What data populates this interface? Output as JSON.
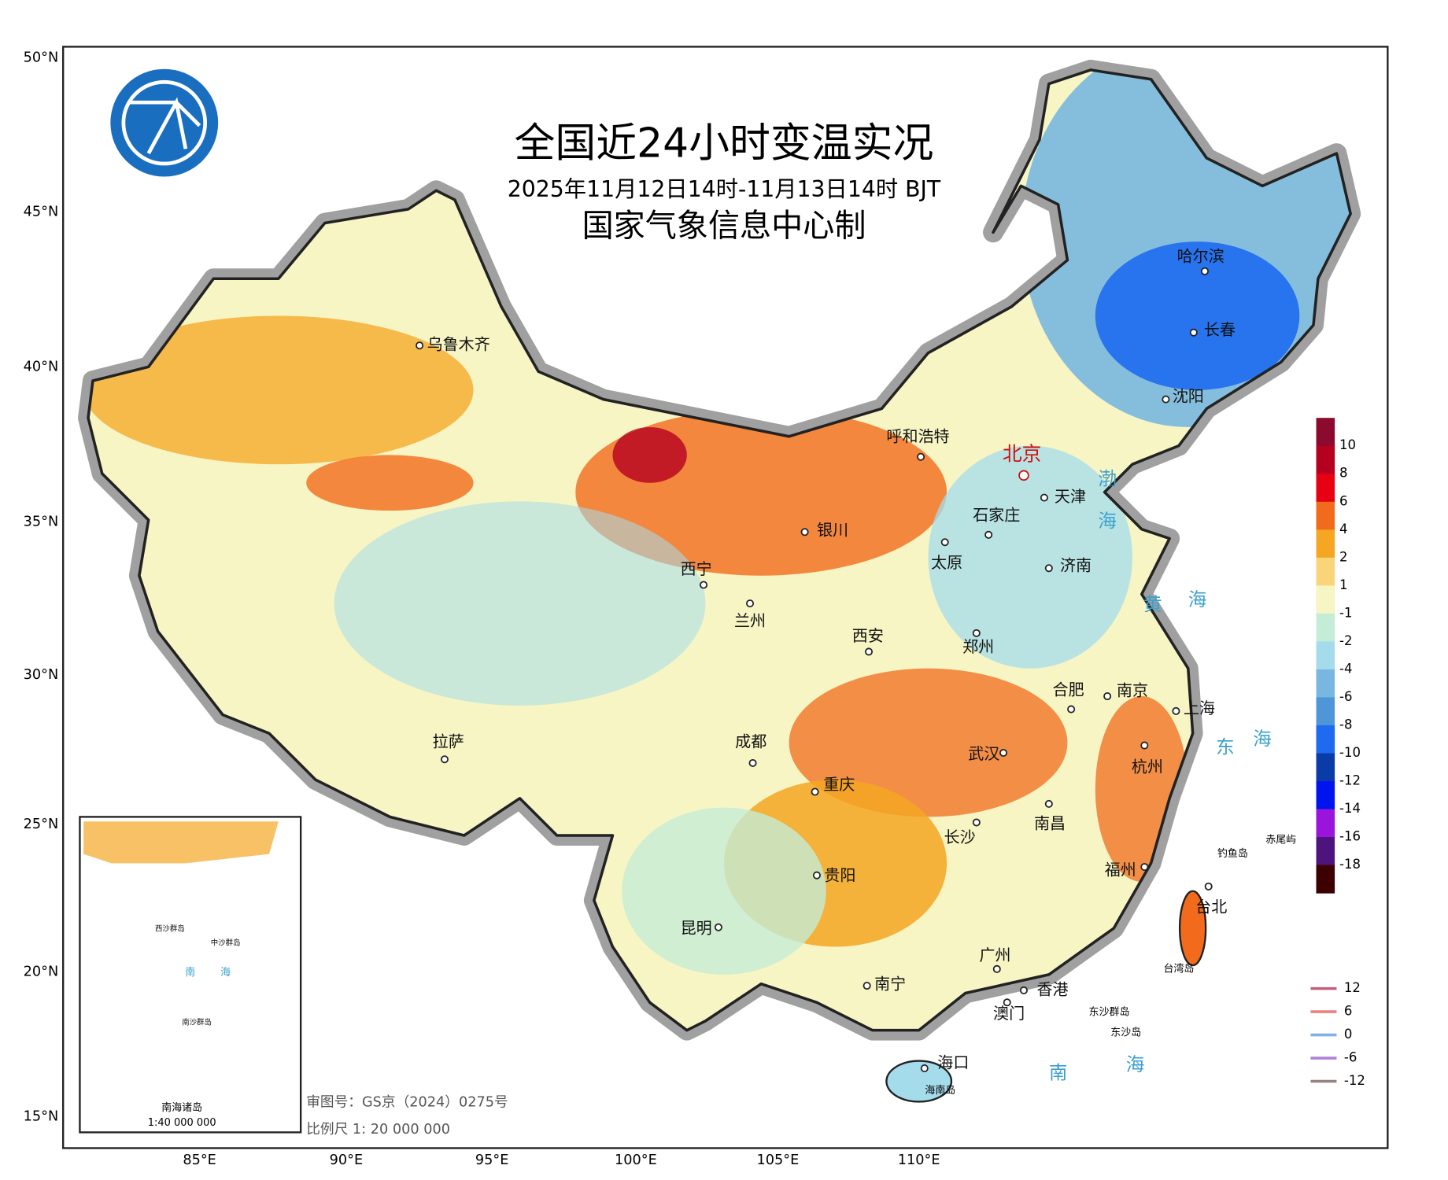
{
  "header": {
    "title": "全国近24小时变温实况",
    "subtitle": "2025年11月12日14时-11月13日14时 BJT",
    "producer": "国家气象信息中心制"
  },
  "lat_labels": [
    "50°N",
    "45°N",
    "40°N",
    "35°N",
    "30°N",
    "25°N",
    "20°N",
    "15°N"
  ],
  "lon_labels": [
    "85°E",
    "90°E",
    "95°E",
    "100°E",
    "105°E",
    "110°E"
  ],
  "legend": {
    "labels": [
      "10",
      "8",
      "6",
      "4",
      "2",
      "1",
      "-1",
      "-2",
      "-4",
      "-6",
      "-8",
      "-10",
      "-12",
      "-14",
      "-16",
      "-18"
    ],
    "colors": [
      "#8b0a2e",
      "#b5001f",
      "#e60012",
      "#f26b1d",
      "#f5a623",
      "#fad478",
      "#f7f5c4",
      "#c4ecd6",
      "#a4dcec",
      "#78b8e0",
      "#4f96d8",
      "#1e6af0",
      "#0a3ca8",
      "#0014f0",
      "#9a14dc",
      "#4c147c",
      "#3c0000"
    ]
  },
  "contour_legend": {
    "labels": [
      "12",
      "6",
      "0",
      "-6",
      "-12"
    ],
    "colors": [
      "#c0607a",
      "#f08080",
      "#80b0e8",
      "#b080d8",
      "#9a8080"
    ]
  },
  "cities": [
    "乌鲁木齐",
    "哈尔滨",
    "长春",
    "沈阳",
    "呼和浩特",
    "北京",
    "天津",
    "石家庄",
    "太原",
    "济南",
    "银川",
    "西宁",
    "兰州",
    "西安",
    "郑州",
    "合肥",
    "南京",
    "上海",
    "武汉",
    "杭州",
    "成都",
    "重庆",
    "长沙",
    "南昌",
    "拉萨",
    "贵阳",
    "福州",
    "台北",
    "昆明",
    "广州",
    "南宁",
    "香港",
    "澳门",
    "海口"
  ],
  "seas": [
    "渤",
    "海",
    "黄",
    "海",
    "东",
    "海",
    "南",
    "海"
  ],
  "places": [
    "海南岛",
    "台湾岛",
    "钓鱼岛",
    "赤尾屿",
    "东沙群岛",
    "东沙岛"
  ],
  "inset": {
    "title": "南海诸岛",
    "scale": "1:40 000 000",
    "labels": [
      "南",
      "海",
      "西沙群岛",
      "中沙群岛",
      "南沙群岛"
    ]
  },
  "footer": {
    "approval": "审图号：GS京（2024）0275号",
    "scale": "比例尺 1: 20 000 000"
  }
}
